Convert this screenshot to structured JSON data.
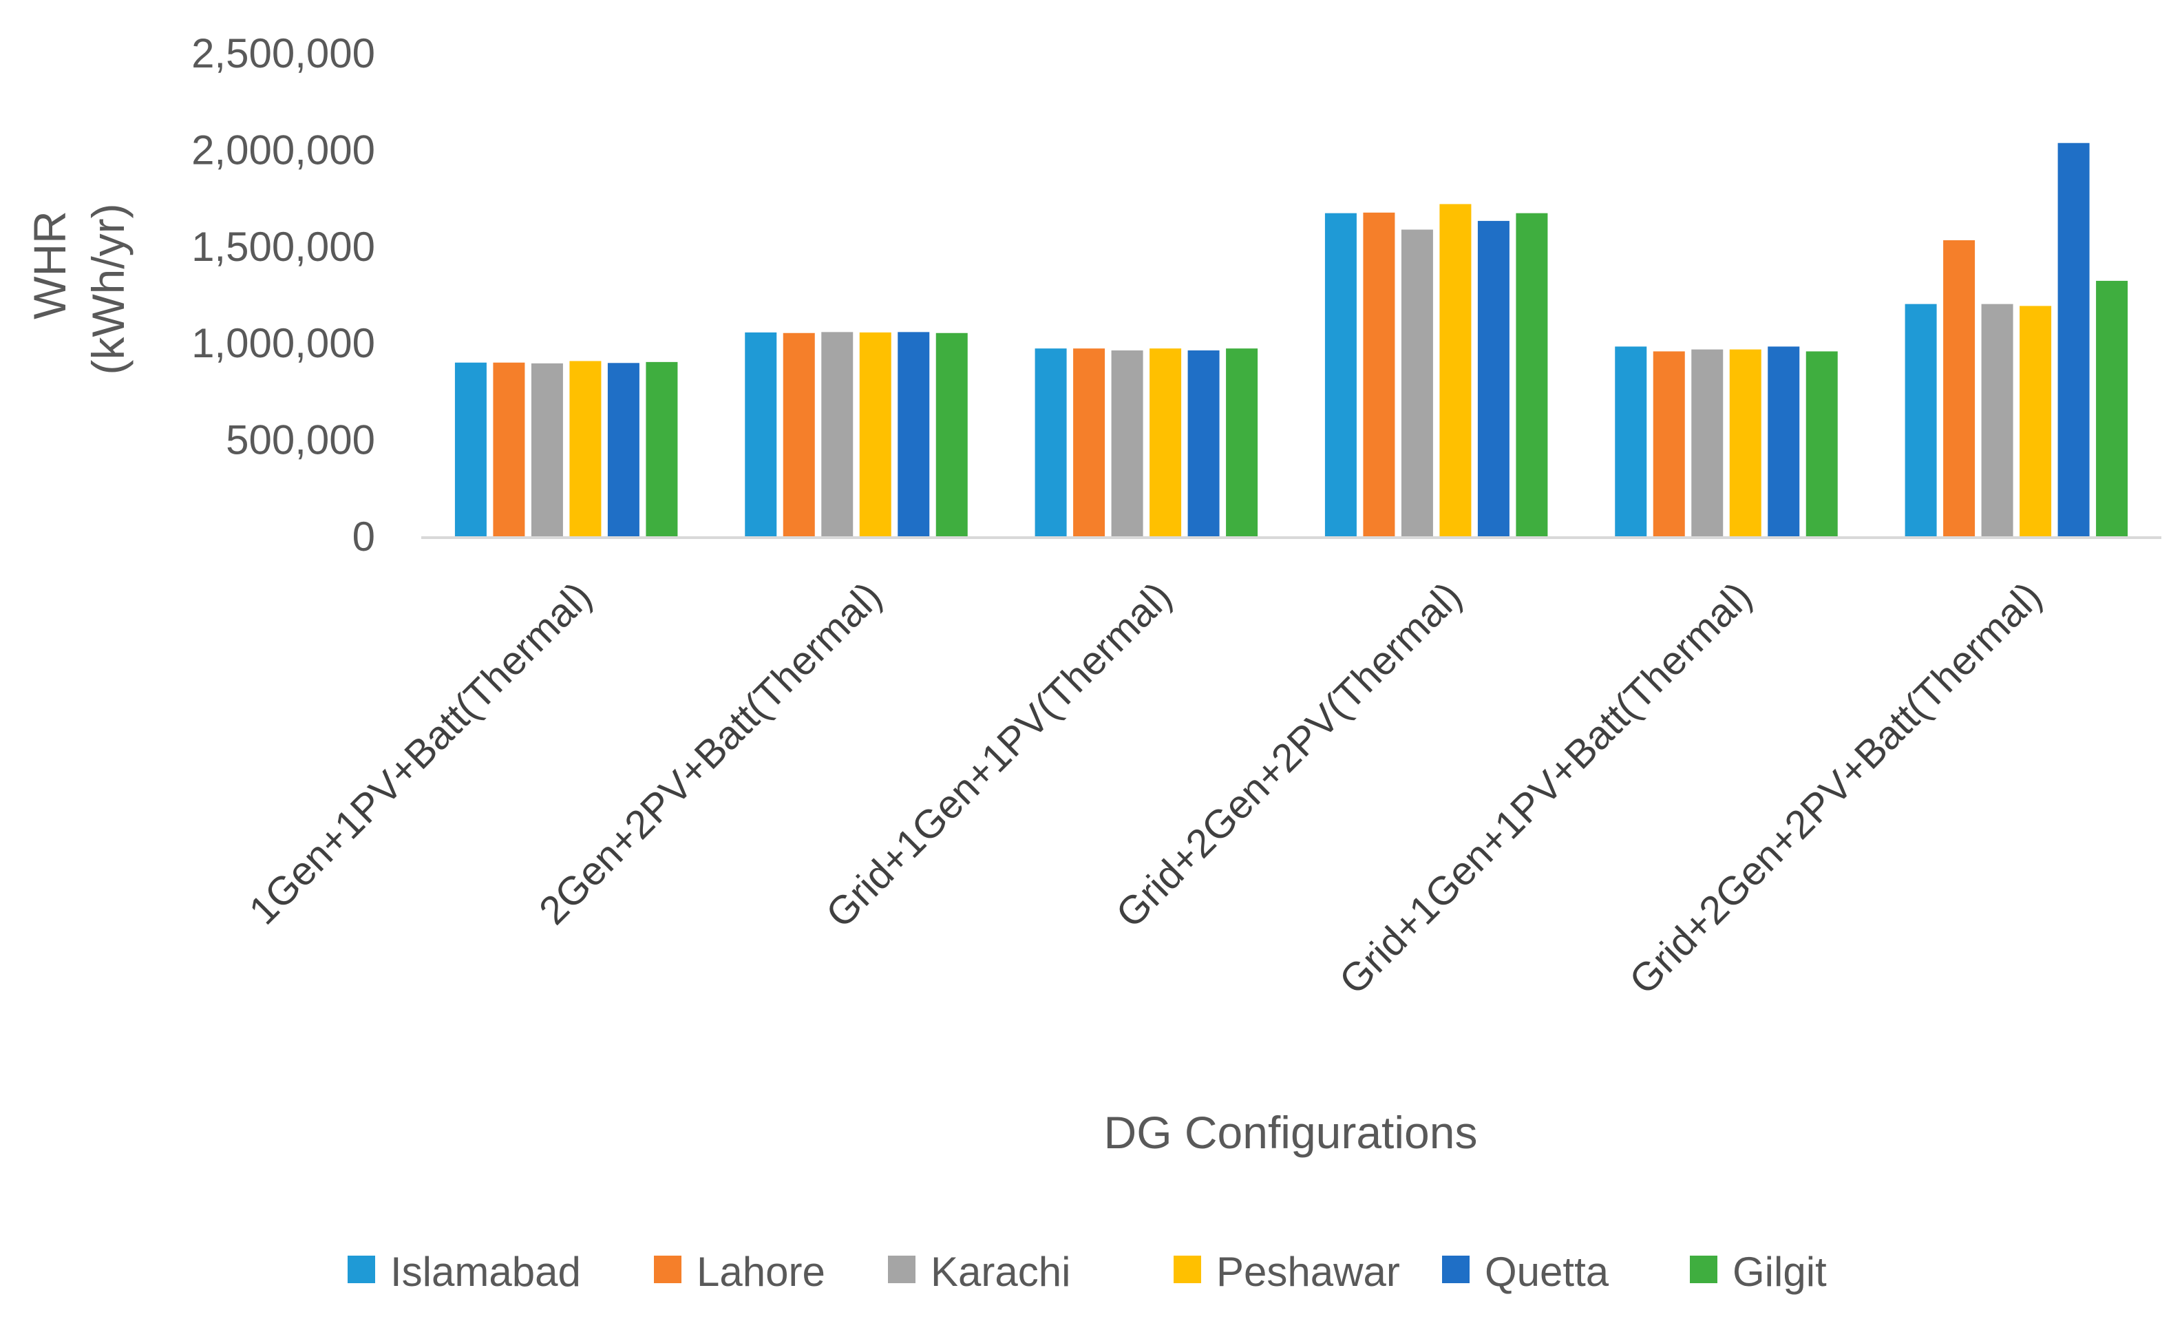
{
  "chart_data": {
    "type": "bar",
    "title": "",
    "xlabel": "DG Configurations",
    "ylabel_line1": "WHR",
    "ylabel_line2": "(kWh/yr)",
    "ylim": [
      0,
      2500000
    ],
    "yticks": [
      0,
      500000,
      1000000,
      1500000,
      2000000,
      2500000
    ],
    "ytick_labels": [
      "0",
      "500,000",
      "1,000,000",
      "1,500,000",
      "2,000,000",
      "2,500,000"
    ],
    "grid": false,
    "legend_position": "bottom",
    "categories": [
      "1Gen+1PV+Batt(Thermal)",
      "2Gen+2PV+Batt(Thermal)",
      "Grid+1Gen+1PV(Thermal)",
      "Grid+2Gen+2PV(Thermal)",
      "Grid+1Gen+1PV+Batt(Thermal)",
      "Grid+2Gen+2PV+Batt(Thermal)"
    ],
    "series": [
      {
        "name": "Islamabad",
        "color": "#1f9ad6",
        "values": [
          902000,
          1058000,
          975000,
          1675000,
          985000,
          1205000
        ]
      },
      {
        "name": "Lahore",
        "color": "#f57f2a",
        "values": [
          902000,
          1055000,
          975000,
          1678000,
          960000,
          1535000
        ]
      },
      {
        "name": "Karachi",
        "color": "#a5a5a5",
        "values": [
          898000,
          1060000,
          965000,
          1590000,
          970000,
          1205000
        ]
      },
      {
        "name": "Peshawar",
        "color": "#ffc000",
        "values": [
          910000,
          1058000,
          975000,
          1722000,
          970000,
          1195000
        ]
      },
      {
        "name": "Quetta",
        "color": "#1f6fc6",
        "values": [
          900000,
          1060000,
          965000,
          1635000,
          985000,
          2038000
        ]
      },
      {
        "name": "Gilgit",
        "color": "#3fae3f",
        "values": [
          905000,
          1055000,
          975000,
          1675000,
          960000,
          1325000
        ]
      }
    ]
  }
}
